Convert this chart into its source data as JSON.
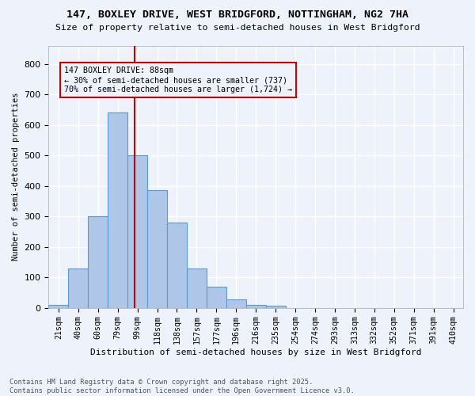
{
  "title1": "147, BOXLEY DRIVE, WEST BRIDGFORD, NOTTINGHAM, NG2 7HA",
  "title2": "Size of property relative to semi-detached houses in West Bridgford",
  "xlabel": "Distribution of semi-detached houses by size in West Bridgford",
  "ylabel": "Number of semi-detached properties",
  "footer1": "Contains HM Land Registry data © Crown copyright and database right 2025.",
  "footer2": "Contains public sector information licensed under the Open Government Licence v3.0.",
  "bin_labels": [
    "21sqm",
    "40sqm",
    "60sqm",
    "79sqm",
    "99sqm",
    "118sqm",
    "138sqm",
    "157sqm",
    "177sqm",
    "196sqm",
    "216sqm",
    "235sqm",
    "254sqm",
    "274sqm",
    "293sqm",
    "313sqm",
    "332sqm",
    "352sqm",
    "371sqm",
    "391sqm",
    "410sqm"
  ],
  "bar_values": [
    10,
    130,
    300,
    640,
    500,
    385,
    280,
    130,
    70,
    28,
    10,
    6,
    0,
    0,
    0,
    0,
    0,
    0,
    0,
    0,
    0
  ],
  "bar_color": "#aec6e8",
  "bar_edge_color": "#5b9bd5",
  "vline_x": 3.85,
  "vline_color": "#cc0000",
  "annotation_title": "147 BOXLEY DRIVE: 88sqm",
  "annotation_line1": "← 30% of semi-detached houses are smaller (737)",
  "annotation_line2": "70% of semi-detached houses are larger (1,724) →",
  "annotation_box_color": "#cc0000",
  "background_color": "#eef2fb",
  "grid_color": "#ffffff",
  "ylim": [
    0,
    860
  ],
  "yticks": [
    0,
    100,
    200,
    300,
    400,
    500,
    600,
    700,
    800
  ]
}
